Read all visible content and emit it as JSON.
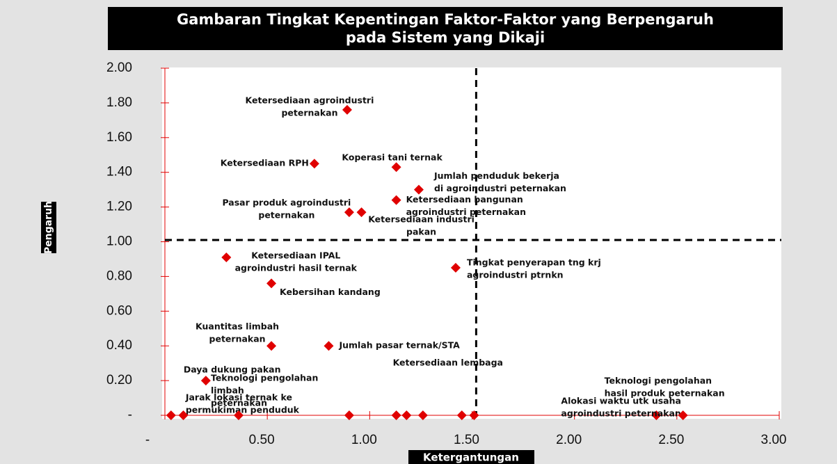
{
  "chart_data": {
    "type": "scatter",
    "title": [
      "Gambaran Tingkat Kepentingan Faktor-Faktor yang Berpengaruh",
      "pada Sistem yang Dikaji"
    ],
    "x_label": "Ketergantungan",
    "y_label": "Pengaruh",
    "color": "#e00000",
    "xlim": [
      0,
      3
    ],
    "ylim": [
      0,
      2
    ],
    "xticks": [
      {
        "value": 0,
        "label": "-"
      },
      {
        "value": 0.5,
        "label": "0.50"
      },
      {
        "value": 1,
        "label": "1.00"
      },
      {
        "value": 1.5,
        "label": "1.50"
      },
      {
        "value": 2,
        "label": "2.00"
      },
      {
        "value": 2.5,
        "label": "2.50"
      },
      {
        "value": 3,
        "label": "3.00"
      }
    ],
    "yticks": [
      {
        "value": 0,
        "label": "-"
      },
      {
        "value": 0.2,
        "label": "0.20"
      },
      {
        "value": 0.4,
        "label": "0.40"
      },
      {
        "value": 0.6,
        "label": "0.60"
      },
      {
        "value": 0.8,
        "label": "0.80"
      },
      {
        "value": 1,
        "label": "1.00"
      },
      {
        "value": 1.2,
        "label": "1.20"
      },
      {
        "value": 1.4,
        "label": "1.40"
      },
      {
        "value": 1.6,
        "label": "1.60"
      },
      {
        "value": 1.8,
        "label": "1.80"
      },
      {
        "value": 2,
        "label": "2.00"
      }
    ],
    "quadrant_lines": {
      "x": 1.52,
      "y": 1.01
    },
    "points": [
      {
        "x": 0.89,
        "y": 1.76,
        "label": [
          "Ketersediaan agroindustri",
          "peternakan"
        ]
      },
      {
        "x": 0.73,
        "y": 1.45,
        "label": [
          "Ketersediaan RPH"
        ]
      },
      {
        "x": 1.13,
        "y": 1.43,
        "label": [
          "Koperasi tani ternak"
        ]
      },
      {
        "x": 1.24,
        "y": 1.3,
        "label": [
          "Jumlah penduduk bekerja",
          "di agroindustri peternakan"
        ]
      },
      {
        "x": 1.13,
        "y": 1.24,
        "label": [
          "Ketersediaan bangunan",
          "agroindustri peternakan"
        ]
      },
      {
        "x": 0.9,
        "y": 1.17,
        "label": [
          "Pasar produk agroindustri",
          "peternakan"
        ]
      },
      {
        "x": 0.96,
        "y": 1.17,
        "label": [
          "Ketersediaan industri",
          "pakan"
        ]
      },
      {
        "x": 0.3,
        "y": 0.91,
        "label": [
          "Ketersediaan IPAL",
          "agroindustri hasil ternak"
        ]
      },
      {
        "x": 1.42,
        "y": 0.85,
        "label": [
          "Tingkat penyerapan tng krj",
          "agroindustri ptrnkn"
        ]
      },
      {
        "x": 0.52,
        "y": 0.76,
        "label": [
          "Kebersihan kandang"
        ]
      },
      {
        "x": 0.52,
        "y": 0.4,
        "label": [
          "Kuantitas limbah",
          "peternakan"
        ]
      },
      {
        "x": 0.8,
        "y": 0.4,
        "label": [
          "Jumlah pasar ternak/STA"
        ]
      },
      {
        "x": 0.2,
        "y": 0.2,
        "label": [
          "Daya dukung pakan"
        ]
      },
      {
        "x": 0.03,
        "y": 0,
        "label": [
          "Jarak lokasi ternak ke",
          "permukiman penduduk"
        ]
      },
      {
        "x": 0.09,
        "y": 0
      },
      {
        "x": 0.36,
        "y": 0,
        "label": [
          "Teknologi pengolahan",
          "limbah",
          "peternakan"
        ]
      },
      {
        "x": 0.9,
        "y": 0
      },
      {
        "x": 1.13,
        "y": 0,
        "label": [
          "Ketersediaan lembaga"
        ]
      },
      {
        "x": 1.18,
        "y": 0
      },
      {
        "x": 1.26,
        "y": 0
      },
      {
        "x": 1.45,
        "y": 0
      },
      {
        "x": 1.51,
        "y": 0
      },
      {
        "x": 2.4,
        "y": 0,
        "label": [
          "Alokasi waktu utk usaha",
          "agroindustri peternakan"
        ]
      },
      {
        "x": 2.53,
        "y": 0,
        "label": [
          "Teknologi pengolahan",
          "hasil produk peternakan"
        ]
      }
    ]
  }
}
